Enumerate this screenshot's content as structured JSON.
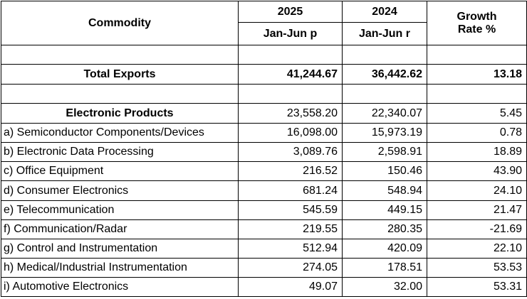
{
  "header": {
    "commodity": "Commodity",
    "col1_year": "2025",
    "col1_period": "Jan-Jun p",
    "col2_year": "2024",
    "col2_period": "Jan-Jun r",
    "growth_line1": "Growth",
    "growth_line2": "Rate %"
  },
  "total": {
    "label": "Total Exports",
    "v2025": "41,244.67",
    "v2024": "36,442.62",
    "growth": "13.18"
  },
  "category": {
    "label": "Electronic Products",
    "v2025": "23,558.20",
    "v2024": "22,340.07",
    "growth": "5.45"
  },
  "rows": [
    {
      "label": "a) Semiconductor Components/Devices",
      "v2025": "16,098.00",
      "v2024": "15,973.19",
      "growth": "0.78"
    },
    {
      "label": "b) Electronic Data Processing",
      "v2025": "3,089.76",
      "v2024": "2,598.91",
      "growth": "18.89"
    },
    {
      "label": "c) Office Equipment",
      "v2025": "216.52",
      "v2024": "150.46",
      "growth": "43.90"
    },
    {
      "label": "d) Consumer Electronics",
      "v2025": "681.24",
      "v2024": "548.94",
      "growth": "24.10"
    },
    {
      "label": "e) Telecommunication",
      "v2025": "545.59",
      "v2024": "449.15",
      "growth": "21.47"
    },
    {
      "label": "f) Communication/Radar",
      "v2025": "219.55",
      "v2024": "280.35",
      "growth": "-21.69"
    },
    {
      "label": "g) Control and Instrumentation",
      "v2025": "512.94",
      "v2024": "420.09",
      "growth": "22.10"
    },
    {
      "label": "h) Medical/Industrial Instrumentation",
      "v2025": "274.05",
      "v2024": "178.51",
      "growth": "53.53"
    },
    {
      "label": "i) Automotive Electronics",
      "v2025": "49.07",
      "v2024": "32.00",
      "growth": "53.31"
    }
  ]
}
